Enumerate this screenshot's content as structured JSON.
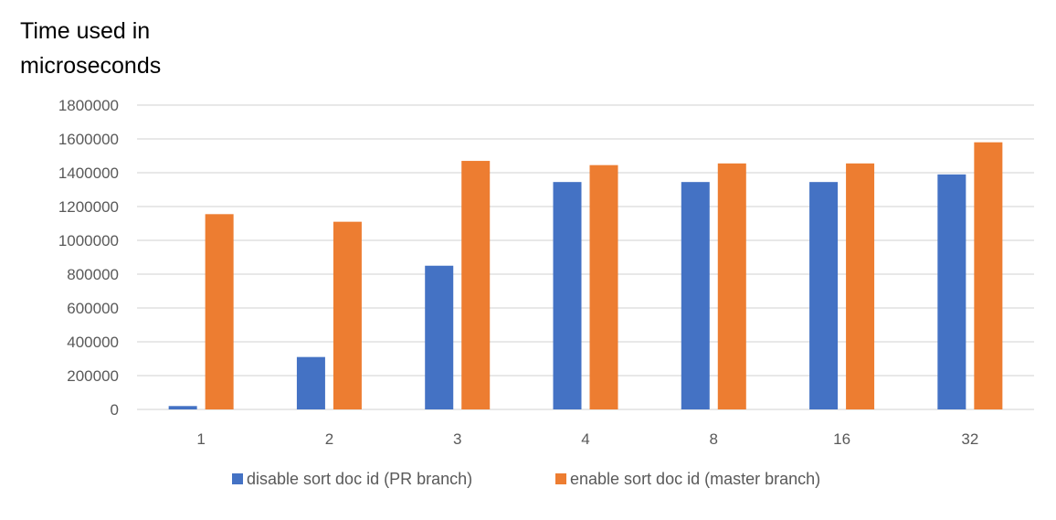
{
  "chart_data": {
    "type": "bar",
    "ylabel_lines": [
      "Time used in",
      "microseconds"
    ],
    "categories": [
      "1",
      "2",
      "3",
      "4",
      "8",
      "16",
      "32"
    ],
    "series": [
      {
        "name": "disable sort doc id (PR branch)",
        "color": "#4472C4",
        "values": [
          20000,
          310000,
          850000,
          1345000,
          1345000,
          1345000,
          1390000
        ]
      },
      {
        "name": "enable sort doc id (master branch)",
        "color": "#ED7D31",
        "values": [
          1155000,
          1110000,
          1470000,
          1445000,
          1455000,
          1455000,
          1580000
        ]
      }
    ],
    "ylim": [
      0,
      1800000
    ],
    "yticks": [
      "0",
      "200000",
      "400000",
      "600000",
      "800000",
      "1000000",
      "1200000",
      "1400000",
      "1600000",
      "1800000"
    ],
    "grid": true,
    "legend_position": "bottom"
  }
}
